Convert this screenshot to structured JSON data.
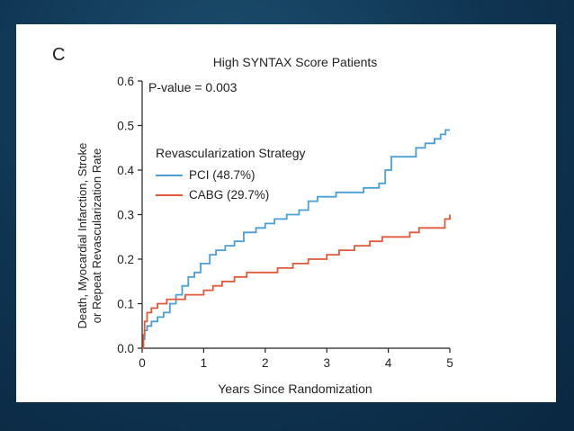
{
  "panel_label": "C",
  "chart_data": {
    "type": "line",
    "title": "High SYNTAX Score Patients",
    "xlabel": "Years Since Randomization",
    "ylabel_line1": "Death, Myocardial Infarction, Stroke",
    "ylabel_line2": "or Repeat Revascularization Rate",
    "xlim": [
      0,
      5
    ],
    "ylim": [
      0,
      0.6
    ],
    "x_ticks": [
      "0",
      "1",
      "2",
      "3",
      "4",
      "5"
    ],
    "y_ticks": [
      "0.0",
      "0.1",
      "0.2",
      "0.3",
      "0.4",
      "0.5",
      "0.6"
    ],
    "annotation": "P-value = 0.003",
    "legend_title": "Revascularization Strategy",
    "legend_position": "upper-left",
    "grid": false,
    "series": [
      {
        "name": "PCI (48.7%)",
        "color": "#4a9fd4",
        "points": [
          [
            0,
            0
          ],
          [
            0.02,
            0.02
          ],
          [
            0.04,
            0.04
          ],
          [
            0.08,
            0.05
          ],
          [
            0.15,
            0.06
          ],
          [
            0.25,
            0.07
          ],
          [
            0.35,
            0.08
          ],
          [
            0.45,
            0.1
          ],
          [
            0.55,
            0.12
          ],
          [
            0.65,
            0.14
          ],
          [
            0.75,
            0.16
          ],
          [
            0.85,
            0.17
          ],
          [
            0.95,
            0.19
          ],
          [
            1.1,
            0.21
          ],
          [
            1.2,
            0.22
          ],
          [
            1.35,
            0.23
          ],
          [
            1.5,
            0.24
          ],
          [
            1.65,
            0.26
          ],
          [
            1.85,
            0.27
          ],
          [
            2.0,
            0.28
          ],
          [
            2.15,
            0.29
          ],
          [
            2.35,
            0.3
          ],
          [
            2.55,
            0.31
          ],
          [
            2.7,
            0.33
          ],
          [
            2.85,
            0.34
          ],
          [
            3.0,
            0.34
          ],
          [
            3.15,
            0.35
          ],
          [
            3.4,
            0.35
          ],
          [
            3.6,
            0.36
          ],
          [
            3.85,
            0.37
          ],
          [
            3.95,
            0.4
          ],
          [
            4.05,
            0.43
          ],
          [
            4.25,
            0.43
          ],
          [
            4.45,
            0.45
          ],
          [
            4.6,
            0.46
          ],
          [
            4.75,
            0.47
          ],
          [
            4.85,
            0.48
          ],
          [
            4.93,
            0.49
          ],
          [
            5.0,
            0.49
          ]
        ]
      },
      {
        "name": "CABG (29.7%)",
        "color": "#e05a3a",
        "points": [
          [
            0,
            0
          ],
          [
            0.02,
            0.03
          ],
          [
            0.04,
            0.06
          ],
          [
            0.08,
            0.08
          ],
          [
            0.15,
            0.09
          ],
          [
            0.25,
            0.1
          ],
          [
            0.4,
            0.11
          ],
          [
            0.55,
            0.11
          ],
          [
            0.7,
            0.12
          ],
          [
            0.85,
            0.12
          ],
          [
            1.0,
            0.13
          ],
          [
            1.15,
            0.14
          ],
          [
            1.3,
            0.15
          ],
          [
            1.5,
            0.16
          ],
          [
            1.7,
            0.17
          ],
          [
            2.0,
            0.17
          ],
          [
            2.2,
            0.18
          ],
          [
            2.45,
            0.19
          ],
          [
            2.7,
            0.2
          ],
          [
            3.0,
            0.21
          ],
          [
            3.2,
            0.22
          ],
          [
            3.45,
            0.23
          ],
          [
            3.7,
            0.24
          ],
          [
            3.9,
            0.25
          ],
          [
            4.2,
            0.25
          ],
          [
            4.35,
            0.26
          ],
          [
            4.5,
            0.27
          ],
          [
            4.7,
            0.27
          ],
          [
            4.85,
            0.27
          ],
          [
            4.92,
            0.29
          ],
          [
            5.0,
            0.3
          ]
        ]
      }
    ]
  }
}
